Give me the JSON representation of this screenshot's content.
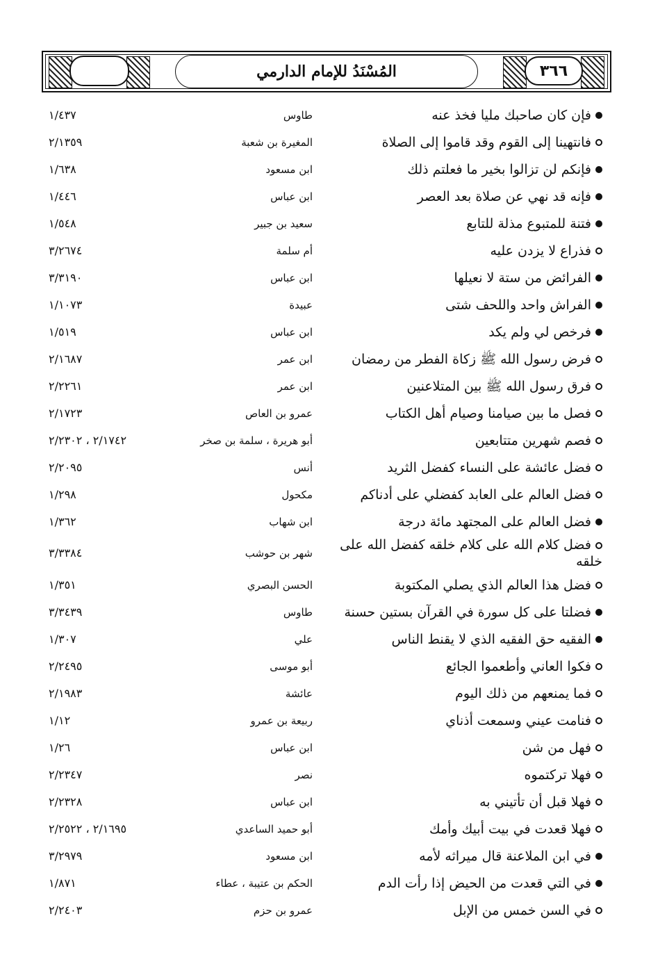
{
  "header": {
    "page_number": "٣٦٦",
    "title": "المُسْنَدُ للإمام الدارمي",
    "logo_text": "المسند للإمام الدارمي"
  },
  "rows": [
    {
      "marker": "filled",
      "text": "فإن كان صاحبك مليا فخذ عنه",
      "narrator": "طاوس",
      "ref": "١/٤٣٧"
    },
    {
      "marker": "hollow",
      "text": "فانتهينا إلى القوم وقد قاموا إلى الصلاة",
      "narrator": "المغيرة بن شعبة",
      "ref": "٢/١٣٥٩"
    },
    {
      "marker": "filled",
      "text": "فإنكم لن تزالوا بخير ما فعلتم ذلك",
      "narrator": "ابن مسعود",
      "ref": "١/٦٣٨"
    },
    {
      "marker": "filled",
      "text": "فإنه قد نهي عن صلاة بعد العصر",
      "narrator": "ابن عباس",
      "ref": "١/٤٤٦"
    },
    {
      "marker": "filled",
      "text": "فتنة للمتبوع مذلة للتابع",
      "narrator": "سعيد بن جبير",
      "ref": "١/٥٤٨"
    },
    {
      "marker": "hollow",
      "text": "فذراع لا يزدن عليه",
      "narrator": "أم سلمة",
      "ref": "٣/٢٦٧٤"
    },
    {
      "marker": "filled",
      "text": "الفرائض من ستة لا نعيلها",
      "narrator": "ابن عباس",
      "ref": "٣/٣١٩٠"
    },
    {
      "marker": "filled",
      "text": "الفراش واحد واللحف شتى",
      "narrator": "عبيدة",
      "ref": "١/١٠٧٣"
    },
    {
      "marker": "filled",
      "text": "فرخص لي ولم يكد",
      "narrator": "ابن عباس",
      "ref": "١/٥١٩"
    },
    {
      "marker": "hollow",
      "text": "فرض رسول الله ﷺ زكاة الفطر من رمضان",
      "narrator": "ابن عمر",
      "ref": "٢/١٦٨٧"
    },
    {
      "marker": "hollow",
      "text": "فرق رسول الله ﷺ بين المتلاعنين",
      "narrator": "ابن عمر",
      "ref": "٢/٢٢٦١"
    },
    {
      "marker": "hollow",
      "text": "فصل ما بين صيامنا وصيام أهل الكتاب",
      "narrator": "عمرو بن العاص",
      "ref": "٢/١٧٢٣"
    },
    {
      "marker": "hollow",
      "text": "فصم شهرين متتابعين",
      "narrator": "أبو هريرة ، سلمة بن صخر",
      "ref": "٢/١٧٤٢ ، ٢/٢٣٠٢"
    },
    {
      "marker": "hollow",
      "text": "فضل عائشة على النساء كفضل الثريد",
      "narrator": "أنس",
      "ref": "٢/٢٠٩٥"
    },
    {
      "marker": "hollow",
      "text": "فضل العالم على العابد كفضلي على أدناكم",
      "narrator": "مكحول",
      "ref": "١/٢٩٨"
    },
    {
      "marker": "filled",
      "text": "فضل العالم على المجتهد مائة درجة",
      "narrator": "ابن شهاب",
      "ref": "١/٣٦٢"
    },
    {
      "marker": "hollow",
      "text": "فضل كلام الله على كلام خلقه كفضل الله على خلقه",
      "narrator": "شهر بن حوشب",
      "ref": "٣/٣٣٨٤"
    },
    {
      "marker": "hollow",
      "text": "فضل هذا العالم الذي يصلي المكتوبة",
      "narrator": "الحسن البصري",
      "ref": "١/٣٥١"
    },
    {
      "marker": "filled",
      "text": "فضلتا على كل سورة في القرآن بستين حسنة",
      "narrator": "طاوس",
      "ref": "٣/٣٤٣٩"
    },
    {
      "marker": "filled",
      "text": "الفقيه حق الفقيه الذي لا يقنط الناس",
      "narrator": "علي",
      "ref": "١/٣٠٧"
    },
    {
      "marker": "hollow",
      "text": "فكوا العاني وأطعموا الجائع",
      "narrator": "أبو موسى",
      "ref": "٢/٢٤٩٥"
    },
    {
      "marker": "hollow",
      "text": "فما يمنعهم من ذلك اليوم",
      "narrator": "عائشة",
      "ref": "٢/١٩٨٣"
    },
    {
      "marker": "hollow",
      "text": "فنامت عيني وسمعت أذناي",
      "narrator": "ربيعة بن عمرو",
      "ref": "١/١٢"
    },
    {
      "marker": "hollow",
      "text": "فهل من شن",
      "narrator": "ابن عباس",
      "ref": "١/٢٦"
    },
    {
      "marker": "hollow",
      "text": "فهلا تركتموه",
      "narrator": "نصر",
      "ref": "٢/٢٣٤٧"
    },
    {
      "marker": "hollow",
      "text": "فهلا قبل أن تأتيني به",
      "narrator": "ابن عباس",
      "ref": "٢/٢٣٢٨"
    },
    {
      "marker": "hollow",
      "text": "فهلا قعدت في بيت أبيك وأمك",
      "narrator": "أبو حميد الساعدي",
      "ref": "٢/١٦٩٥ ، ٢/٢٥٢٢"
    },
    {
      "marker": "filled",
      "text": "في ابن الملاعنة قال ميراثه لأمه",
      "narrator": "ابن مسعود",
      "ref": "٣/٢٩٧٩"
    },
    {
      "marker": "filled",
      "text": "في التي قعدت من الحيض إذا رأت الدم",
      "narrator": "الحكم بن عتيبة ، عطاء",
      "ref": "١/٨٧١"
    },
    {
      "marker": "hollow",
      "text": "في السن خمس من الإبل",
      "narrator": "عمرو بن حزم",
      "ref": "٢/٢٤٠٣"
    }
  ]
}
